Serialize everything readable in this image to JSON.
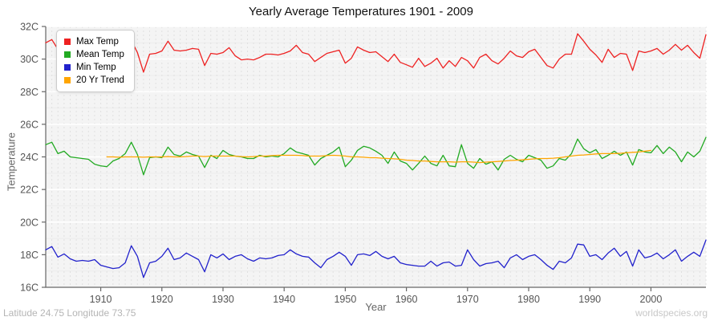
{
  "header": {
    "title": "Yearly Average Temperatures 1901 - 2009"
  },
  "footer": {
    "left": "Latitude 24.75 Longitude 73.75",
    "right": "worldspecies.org"
  },
  "chart_data": {
    "type": "line",
    "title": "Yearly Average Temperatures 1901 - 2009",
    "xlabel": "Year",
    "ylabel": "Temperature",
    "x_range": [
      1901,
      2009
    ],
    "ylim": [
      16,
      32
    ],
    "x_ticks": [
      1910,
      1920,
      1930,
      1940,
      1950,
      1960,
      1970,
      1980,
      1990,
      2000
    ],
    "y_ticks": [
      16,
      18,
      20,
      22,
      24,
      26,
      28,
      30,
      32
    ],
    "y_tick_suffix": "C",
    "grid": true,
    "legend_position": "top-left",
    "colors": {
      "plot_bg": "#f4f4f4",
      "grid_vertical_dashed": "#e0e0e0",
      "grid_major_horizontal": "#ffffff",
      "grid_minor_horizontal": "#ececec",
      "axis": "#666666",
      "tick_text": "#555555"
    },
    "series": [
      {
        "name": "Max Temp",
        "color": "#ee2222",
        "start_year": 1901,
        "values": [
          31.0,
          31.2,
          30.6,
          30.75,
          30.5,
          30.45,
          30.5,
          30.4,
          30.35,
          30.1,
          30.0,
          30.15,
          30.3,
          30.6,
          31.15,
          30.4,
          29.2,
          30.3,
          30.35,
          30.5,
          31.1,
          30.55,
          30.5,
          30.55,
          30.65,
          30.6,
          29.6,
          30.35,
          30.3,
          30.4,
          30.7,
          30.2,
          29.95,
          30.0,
          29.95,
          30.1,
          30.3,
          30.3,
          30.25,
          30.35,
          30.5,
          30.85,
          30.4,
          30.3,
          29.85,
          30.1,
          30.35,
          30.45,
          30.55,
          29.75,
          30.05,
          30.75,
          30.55,
          30.4,
          30.45,
          30.15,
          29.85,
          30.3,
          29.8,
          29.65,
          29.5,
          30.05,
          29.55,
          29.75,
          30.05,
          29.45,
          29.9,
          29.55,
          30.1,
          29.9,
          29.45,
          30.1,
          30.3,
          29.9,
          29.7,
          30.05,
          30.5,
          30.2,
          30.1,
          30.45,
          30.6,
          30.1,
          29.6,
          29.45,
          30.0,
          30.3,
          30.3,
          31.55,
          31.1,
          30.6,
          30.25,
          29.8,
          30.6,
          30.1,
          30.35,
          30.3,
          29.3,
          30.5,
          30.4,
          30.5,
          30.65,
          30.3,
          30.55,
          30.9,
          30.55,
          30.85,
          30.4,
          30.05,
          31.5
        ]
      },
      {
        "name": "Mean Temp",
        "color": "#22aa22",
        "start_year": 1901,
        "values": [
          24.75,
          24.9,
          24.2,
          24.35,
          24.0,
          23.95,
          23.9,
          23.85,
          23.55,
          23.45,
          23.4,
          23.75,
          23.9,
          24.2,
          24.9,
          24.15,
          22.9,
          23.95,
          24.0,
          23.95,
          24.6,
          24.15,
          24.05,
          24.3,
          24.15,
          24.05,
          23.35,
          24.1,
          23.9,
          24.4,
          24.15,
          24.05,
          24.0,
          23.9,
          23.9,
          24.1,
          24.0,
          24.05,
          24.0,
          24.2,
          24.55,
          24.3,
          24.2,
          24.1,
          23.5,
          23.9,
          24.1,
          24.3,
          24.6,
          23.4,
          23.8,
          24.4,
          24.65,
          24.55,
          24.35,
          24.1,
          23.6,
          24.3,
          23.75,
          23.6,
          23.2,
          23.6,
          24.05,
          23.6,
          23.45,
          24.1,
          23.45,
          23.4,
          24.75,
          23.6,
          23.3,
          23.9,
          23.55,
          23.7,
          23.2,
          23.85,
          24.1,
          23.85,
          23.7,
          24.1,
          23.95,
          23.8,
          23.3,
          23.45,
          23.9,
          23.8,
          24.2,
          25.1,
          24.5,
          24.25,
          24.45,
          23.9,
          24.1,
          24.35,
          24.1,
          24.3,
          23.5,
          24.45,
          24.3,
          24.25,
          24.7,
          24.2,
          24.6,
          24.3,
          23.7,
          24.3,
          24.0,
          24.35,
          25.2
        ]
      },
      {
        "name": "Min Temp",
        "color": "#2222cc",
        "start_year": 1901,
        "values": [
          18.3,
          18.5,
          17.85,
          18.05,
          17.75,
          17.6,
          17.65,
          17.6,
          17.7,
          17.35,
          17.25,
          17.15,
          17.2,
          17.5,
          18.55,
          17.9,
          16.6,
          17.5,
          17.6,
          17.9,
          18.4,
          17.7,
          17.8,
          18.1,
          17.9,
          17.7,
          16.95,
          18.0,
          17.8,
          18.05,
          17.7,
          17.9,
          18.0,
          17.75,
          17.6,
          17.8,
          17.75,
          17.8,
          17.95,
          18.0,
          18.3,
          18.05,
          17.9,
          17.85,
          17.5,
          17.2,
          17.7,
          17.9,
          18.15,
          17.9,
          17.35,
          18.0,
          18.05,
          17.95,
          18.2,
          17.9,
          17.75,
          17.9,
          17.5,
          17.4,
          17.35,
          17.3,
          17.3,
          17.6,
          17.3,
          17.5,
          17.55,
          17.3,
          17.35,
          18.3,
          17.7,
          17.3,
          17.45,
          17.5,
          17.6,
          17.2,
          17.8,
          18.0,
          17.7,
          17.9,
          18.0,
          17.7,
          17.35,
          17.1,
          17.6,
          17.5,
          17.8,
          18.65,
          18.6,
          17.9,
          18.0,
          17.7,
          18.1,
          18.4,
          17.9,
          18.2,
          17.3,
          18.3,
          17.8,
          17.9,
          18.1,
          17.75,
          18.0,
          18.3,
          17.6,
          17.9,
          18.15,
          17.9,
          18.9
        ]
      },
      {
        "name": "20 Yr Trend",
        "color": "#ffa500",
        "start_year": 1911,
        "values": [
          24.0,
          24.0,
          23.98,
          24.0,
          24.0,
          24.0,
          23.98,
          24.0,
          24.0,
          24.0,
          24.02,
          24.0,
          24.0,
          24.02,
          24.05,
          24.05,
          24.02,
          24.05,
          24.05,
          24.05,
          24.05,
          24.05,
          24.02,
          24.0,
          24.02,
          24.05,
          24.05,
          24.08,
          24.1,
          24.1,
          24.1,
          24.1,
          24.08,
          24.05,
          24.05,
          24.05,
          24.08,
          24.1,
          24.08,
          24.05,
          24.0,
          24.0,
          23.98,
          23.95,
          23.95,
          23.92,
          23.9,
          23.88,
          23.85,
          23.8,
          23.78,
          23.75,
          23.75,
          23.72,
          23.7,
          23.7,
          23.7,
          23.68,
          23.7,
          23.7,
          23.68,
          23.65,
          23.68,
          23.7,
          23.72,
          23.75,
          23.78,
          23.8,
          23.82,
          23.85,
          23.88,
          23.9,
          23.9,
          23.92,
          23.95,
          24.0,
          24.05,
          24.1,
          24.12,
          24.15,
          24.18,
          24.2,
          24.2,
          24.2,
          24.22,
          24.25,
          24.28,
          24.3,
          24.35,
          24.4
        ]
      }
    ]
  }
}
